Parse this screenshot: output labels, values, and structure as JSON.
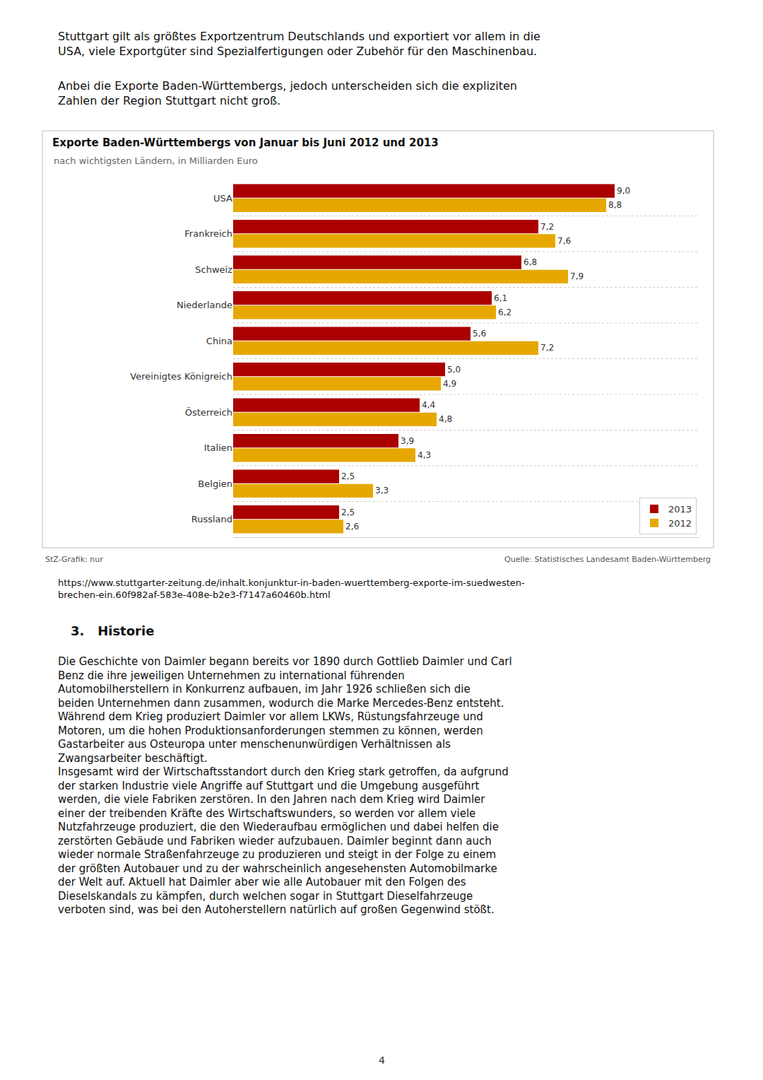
{
  "chart_data": {
    "type": "bar",
    "orientation": "horizontal",
    "title": "Exporte Baden-Württembergs von Januar bis Juni 2012 und 2013",
    "subtitle": "nach wichtigsten Ländern, in Milliarden Euro",
    "categories": [
      "USA",
      "Frankreich",
      "Schweiz",
      "Niederlande",
      "China",
      "Vereinigtes Königreich",
      "Österreich",
      "Italien",
      "Belgien",
      "Russland"
    ],
    "series": [
      {
        "name": "2013",
        "color": "#aa0000",
        "values": [
          9.0,
          7.2,
          6.8,
          6.1,
          5.6,
          5.0,
          4.4,
          3.9,
          2.5,
          2.5
        ],
        "value_labels": [
          "9,0",
          "7,2",
          "6,8",
          "6,1",
          "5,6",
          "5,0",
          "4,4",
          "3,9",
          "2,5",
          "2,5"
        ]
      },
      {
        "name": "2012",
        "color": "#e6a800",
        "values": [
          8.8,
          7.6,
          7.9,
          6.2,
          7.2,
          4.9,
          4.8,
          4.3,
          3.3,
          2.6
        ],
        "value_labels": [
          "8,8",
          "7,6",
          "7,9",
          "6,2",
          "7,2",
          "4,9",
          "4,8",
          "4,3",
          "3,3",
          "2,6"
        ]
      }
    ],
    "xlim": [
      0,
      11
    ],
    "tick_labels": "y",
    "data_labels": true,
    "grid": false,
    "legend": "lower right",
    "annotations": [
      "StZ-Grafik: nur",
      "Quelle: Statistisches Landesamt Baden-Württemberg"
    ]
  },
  "page": {
    "paragraphs_above": [
      "Stuttgart gilt als größtes Exportzentrum Deutschlands und exportiert vor allem in die\nUSA, viele Exportgüter sind Spezialfertigungen oder Zubehör für den Maschinenbau.",
      "Anbei die Exporte Baden-Württembergs, jedoch unterscheiden sich die expliziten\nZahlen der Region Stuttgart nicht groß."
    ],
    "url": "https://www.stuttgarter-zeitung.de/inhalt.konjunktur-in-baden-wuerttemberg-exporte-im-suedwesten-\nbrechen-ein.60f982af-583e-408e-b2e3-f7147a60460b.html",
    "heading": "3.   Historie",
    "body": "Die Geschichte von Daimler begann bereits vor 1890 durch Gottlieb Daimler und Carl\nBenz die ihre jeweiligen Unternehmen zu international führenden\nAutomobilherstellern in Konkurrenz aufbauen, im Jahr 1926 schließen sich die\nbeiden Unternehmen dann zusammen, wodurch die Marke Mercedes-Benz entsteht.\nWährend dem Krieg produziert Daimler vor allem LKWs, Rüstungsfahrzeuge und\nMotoren, um die hohen Produktionsanforderungen stemmen zu können, werden\nGastarbeiter aus Osteuropa unter menschenunwürdigen Verhältnissen als\nZwangsarbeiter beschäftigt.\nInsgesamt wird der Wirtschaftsstandort durch den Krieg stark getroffen, da aufgrund\nder starken Industrie viele Angriffe auf Stuttgart und die Umgebung ausgeführt\nwerden, die viele Fabriken zerstören. In den Jahren nach dem Krieg wird Daimler\neiner der treibenden Kräfte des Wirtschaftswunders, so werden vor allem viele\nNutzfahrzeuge produziert, die den Wiederaufbau ermöglichen und dabei helfen die\nzerstörten Gebäude und Fabriken wieder aufzubauen. Daimler beginnt dann auch\nwieder normale Straßenfahrzeuge zu produzieren und steigt in der Folge zu einem\nder größten Autobauer und zu der wahrscheinlich angesehensten Automobilmarke\nder Welt auf. Aktuell hat Daimler aber wie alle Autobauer mit den Folgen des\nDieselskandals zu kämpfen, durch welchen sogar in Stuttgart Dieselfahrzeuge\nverboten sind, was bei den Autoherstellern natürlich auf großen Gegenwind stößt.",
    "page_number": "4"
  }
}
